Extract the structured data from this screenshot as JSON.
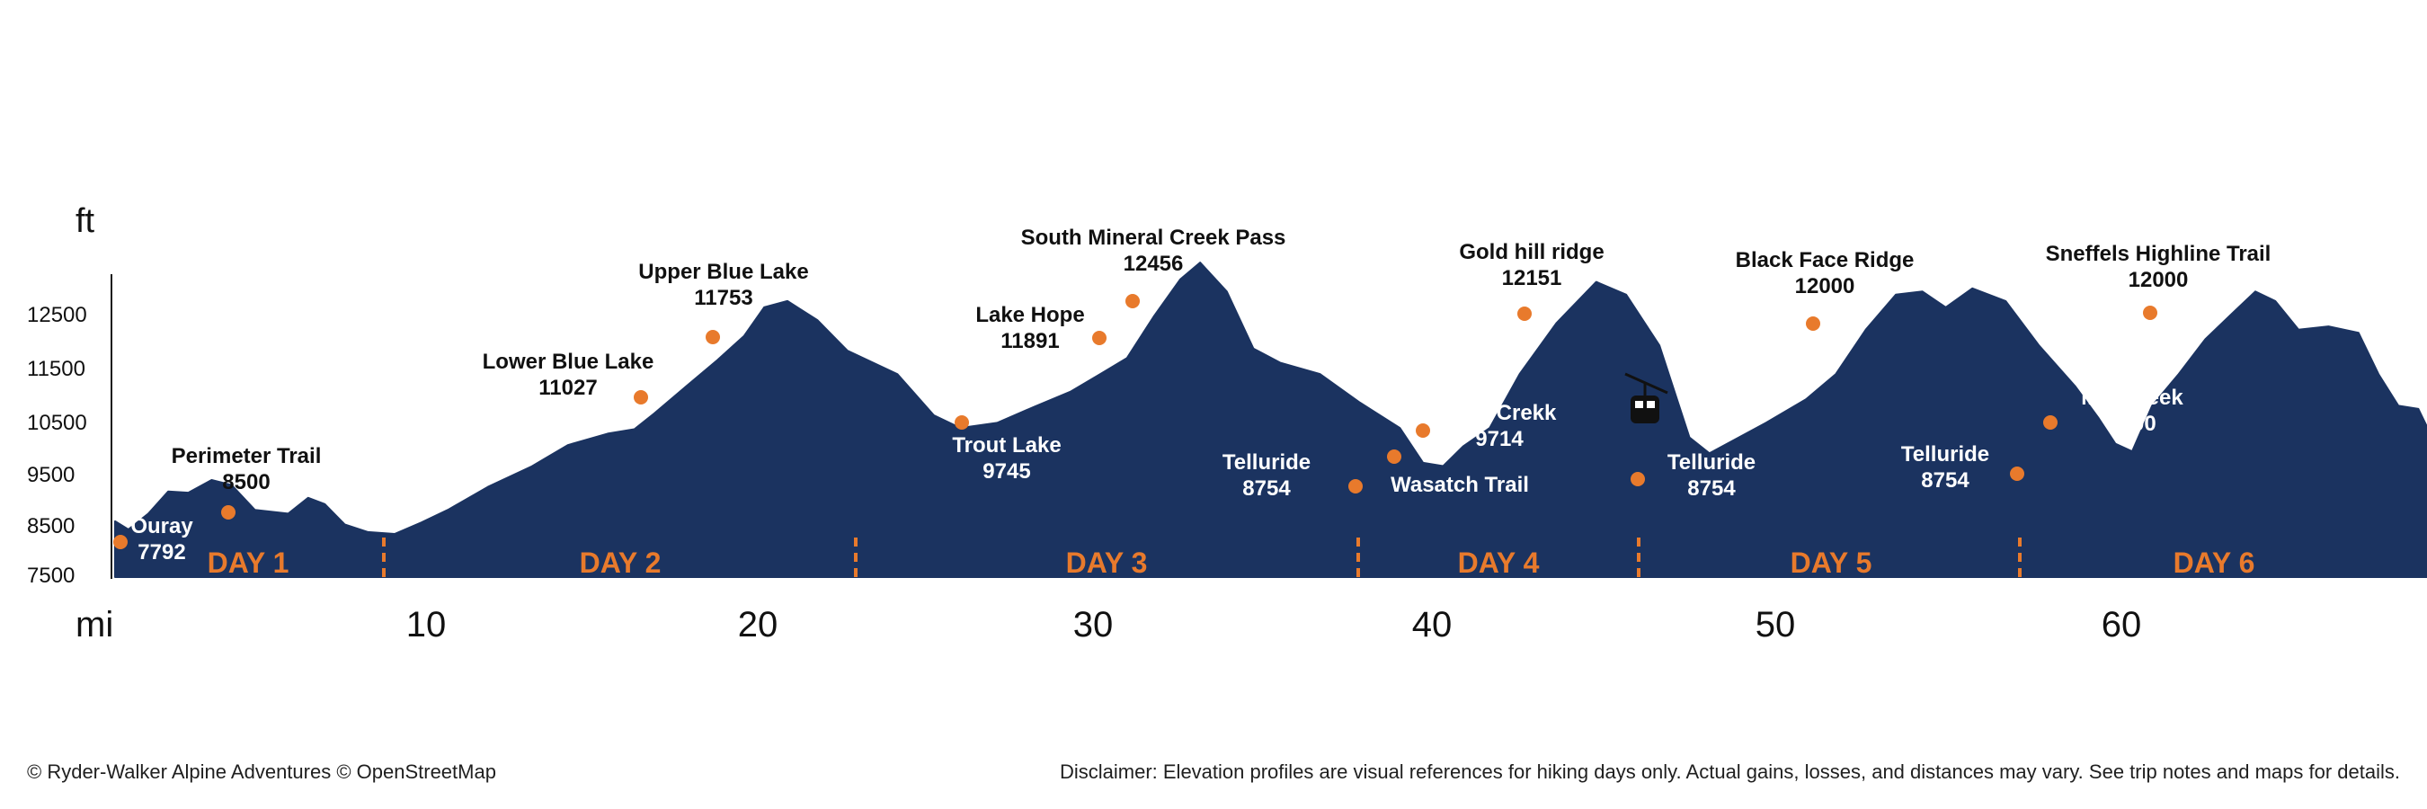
{
  "chart_data": {
    "type": "area",
    "y_unit": "ft",
    "x_unit": "mi",
    "ylim": [
      7500,
      13200
    ],
    "xlim": [
      0,
      69
    ],
    "y_ticks": [
      7500,
      8500,
      9500,
      10500,
      11500,
      12500
    ],
    "x_ticks": [
      10,
      20,
      30,
      40,
      50,
      60
    ],
    "grid": false,
    "colors": {
      "terrain": "#1b3360",
      "accent": "#e87a2c",
      "label": "#111111",
      "label_inside": "#ffffff"
    },
    "profile": [
      [
        0,
        8380
      ],
      [
        0.4,
        8250
      ],
      [
        1,
        8500
      ],
      [
        1.6,
        8850
      ],
      [
        2.2,
        8830
      ],
      [
        2.9,
        9030
      ],
      [
        3.5,
        8950
      ],
      [
        4.2,
        8560
      ],
      [
        5.2,
        8500
      ],
      [
        5.8,
        8750
      ],
      [
        6.3,
        8650
      ],
      [
        6.9,
        8330
      ],
      [
        7.6,
        8210
      ],
      [
        8.4,
        8180
      ],
      [
        9.2,
        8360
      ],
      [
        10,
        8560
      ],
      [
        11.2,
        8920
      ],
      [
        12.5,
        9240
      ],
      [
        13.6,
        9580
      ],
      [
        14.8,
        9760
      ],
      [
        15.6,
        9830
      ],
      [
        16.2,
        10080
      ],
      [
        17.1,
        10480
      ],
      [
        18.1,
        10920
      ],
      [
        18.9,
        11300
      ],
      [
        19.5,
        11750
      ],
      [
        20.2,
        11850
      ],
      [
        21.1,
        11550
      ],
      [
        22,
        11070
      ],
      [
        23.5,
        10700
      ],
      [
        24.6,
        10050
      ],
      [
        25.4,
        9850
      ],
      [
        26.5,
        9930
      ],
      [
        27.6,
        10180
      ],
      [
        28.7,
        10420
      ],
      [
        29.6,
        10700
      ],
      [
        30.4,
        10950
      ],
      [
        31.2,
        11600
      ],
      [
        32.0,
        12190
      ],
      [
        32.6,
        12456
      ],
      [
        33.4,
        12000
      ],
      [
        34.2,
        11100
      ],
      [
        35.0,
        10880
      ],
      [
        36.2,
        10700
      ],
      [
        37.4,
        10250
      ],
      [
        38.6,
        9850
      ],
      [
        39.3,
        9300
      ],
      [
        39.9,
        9250
      ],
      [
        40.5,
        9560
      ],
      [
        41.3,
        9850
      ],
      [
        42.2,
        10700
      ],
      [
        43.3,
        11500
      ],
      [
        44.5,
        12151
      ],
      [
        45.4,
        11950
      ],
      [
        46.4,
        11150
      ],
      [
        47.3,
        9700
      ],
      [
        47.9,
        9450
      ],
      [
        49.6,
        9930
      ],
      [
        50.8,
        10300
      ],
      [
        51.7,
        10700
      ],
      [
        52.6,
        11400
      ],
      [
        53.5,
        11950
      ],
      [
        54.3,
        12000
      ],
      [
        55.0,
        11750
      ],
      [
        55.8,
        12050
      ],
      [
        56.8,
        11850
      ],
      [
        57.8,
        11150
      ],
      [
        58.9,
        10500
      ],
      [
        59.6,
        10000
      ],
      [
        60.1,
        9600
      ],
      [
        60.6,
        9480
      ],
      [
        61.2,
        10200
      ],
      [
        62.0,
        10700
      ],
      [
        62.8,
        11250
      ],
      [
        63.6,
        11650
      ],
      [
        64.3,
        12000
      ],
      [
        64.9,
        11850
      ],
      [
        65.6,
        11400
      ],
      [
        66.5,
        11450
      ],
      [
        67.4,
        11350
      ],
      [
        68.0,
        10700
      ],
      [
        68.6,
        10200
      ],
      [
        69.2,
        10150
      ],
      [
        69.8,
        9500
      ]
    ],
    "waypoints": [
      {
        "name": "Ouray",
        "elevation": "7792",
        "x": 0.3,
        "y": 8200,
        "pos": "right-inside"
      },
      {
        "name": "Perimeter Trail",
        "elevation": "8500",
        "x": 3.5,
        "y": 8550,
        "pos": "above"
      },
      {
        "name": "Lower Blue Lake",
        "elevation": "11027",
        "x": 16.0,
        "y": 9980,
        "pos": "above-left"
      },
      {
        "name": "Upper Blue Lake",
        "elevation": "11753",
        "x": 18.1,
        "y": 11600,
        "pos": "above"
      },
      {
        "name": "Trout Lake",
        "elevation": "9745",
        "x": 25.7,
        "y": 9950,
        "pos": "below-right"
      },
      {
        "name": "Lake Hope",
        "elevation": "11891",
        "x": 29.6,
        "y": 11600,
        "pos": "left"
      },
      {
        "name": "South Mineral Creek Pass",
        "elevation": "12456",
        "x": 30.8,
        "y": 12250,
        "pos": "above"
      },
      {
        "name": "Telluride",
        "elevation": "8754",
        "x": 37.9,
        "y": 9180,
        "pos": "left-inside"
      },
      {
        "name": "Wasatch Trail",
        "elevation": "",
        "x": 38.9,
        "y": 9500,
        "pos": "below-right"
      },
      {
        "name": "Bear Crekk",
        "elevation": "9714",
        "x": 39.4,
        "y": 9790,
        "pos": "right-inside"
      },
      {
        "name": "Gold hill ridge",
        "elevation": "12151",
        "x": 42.4,
        "y": 12000,
        "pos": "above"
      },
      {
        "name": "Telluride",
        "elevation": "8754",
        "x": 46.2,
        "y": 9250,
        "pos": "right"
      },
      {
        "name": "Black Face Ridge",
        "elevation": "12000",
        "x": 51.2,
        "y": 11850,
        "pos": "above"
      },
      {
        "name": "Telluride",
        "elevation": "8754",
        "x": 57.2,
        "y": 9400,
        "pos": "left-inside"
      },
      {
        "name": "Mill Creek",
        "elevation": "9800",
        "x": 58.1,
        "y": 9950,
        "pos": "right-inside"
      },
      {
        "name": "Sneffels Highline Trail",
        "elevation": "12000",
        "x": 61.5,
        "y": 12050,
        "pos": "above"
      }
    ],
    "days": [
      {
        "label": "DAY 1",
        "center": 4.1
      },
      {
        "label": "DAY 2",
        "center": 15.3
      },
      {
        "label": "DAY 3",
        "center": 29.9
      },
      {
        "label": "DAY 4",
        "center": 41.9
      },
      {
        "label": "DAY 5",
        "center": 51.9
      },
      {
        "label": "DAY 6",
        "center": 63.7
      }
    ],
    "day_dividers": [
      8.2,
      22.4,
      37.5,
      46.0,
      57.4
    ],
    "gondola_icon": "gondola-icon"
  },
  "footer": {
    "credit": "© Ryder-Walker Alpine Adventures © OpenStreetMap",
    "disclaimer": "Disclaimer: Elevation profiles are visual references for hiking days only. Actual gains, losses, and distances may vary. See trip notes and maps for details."
  }
}
